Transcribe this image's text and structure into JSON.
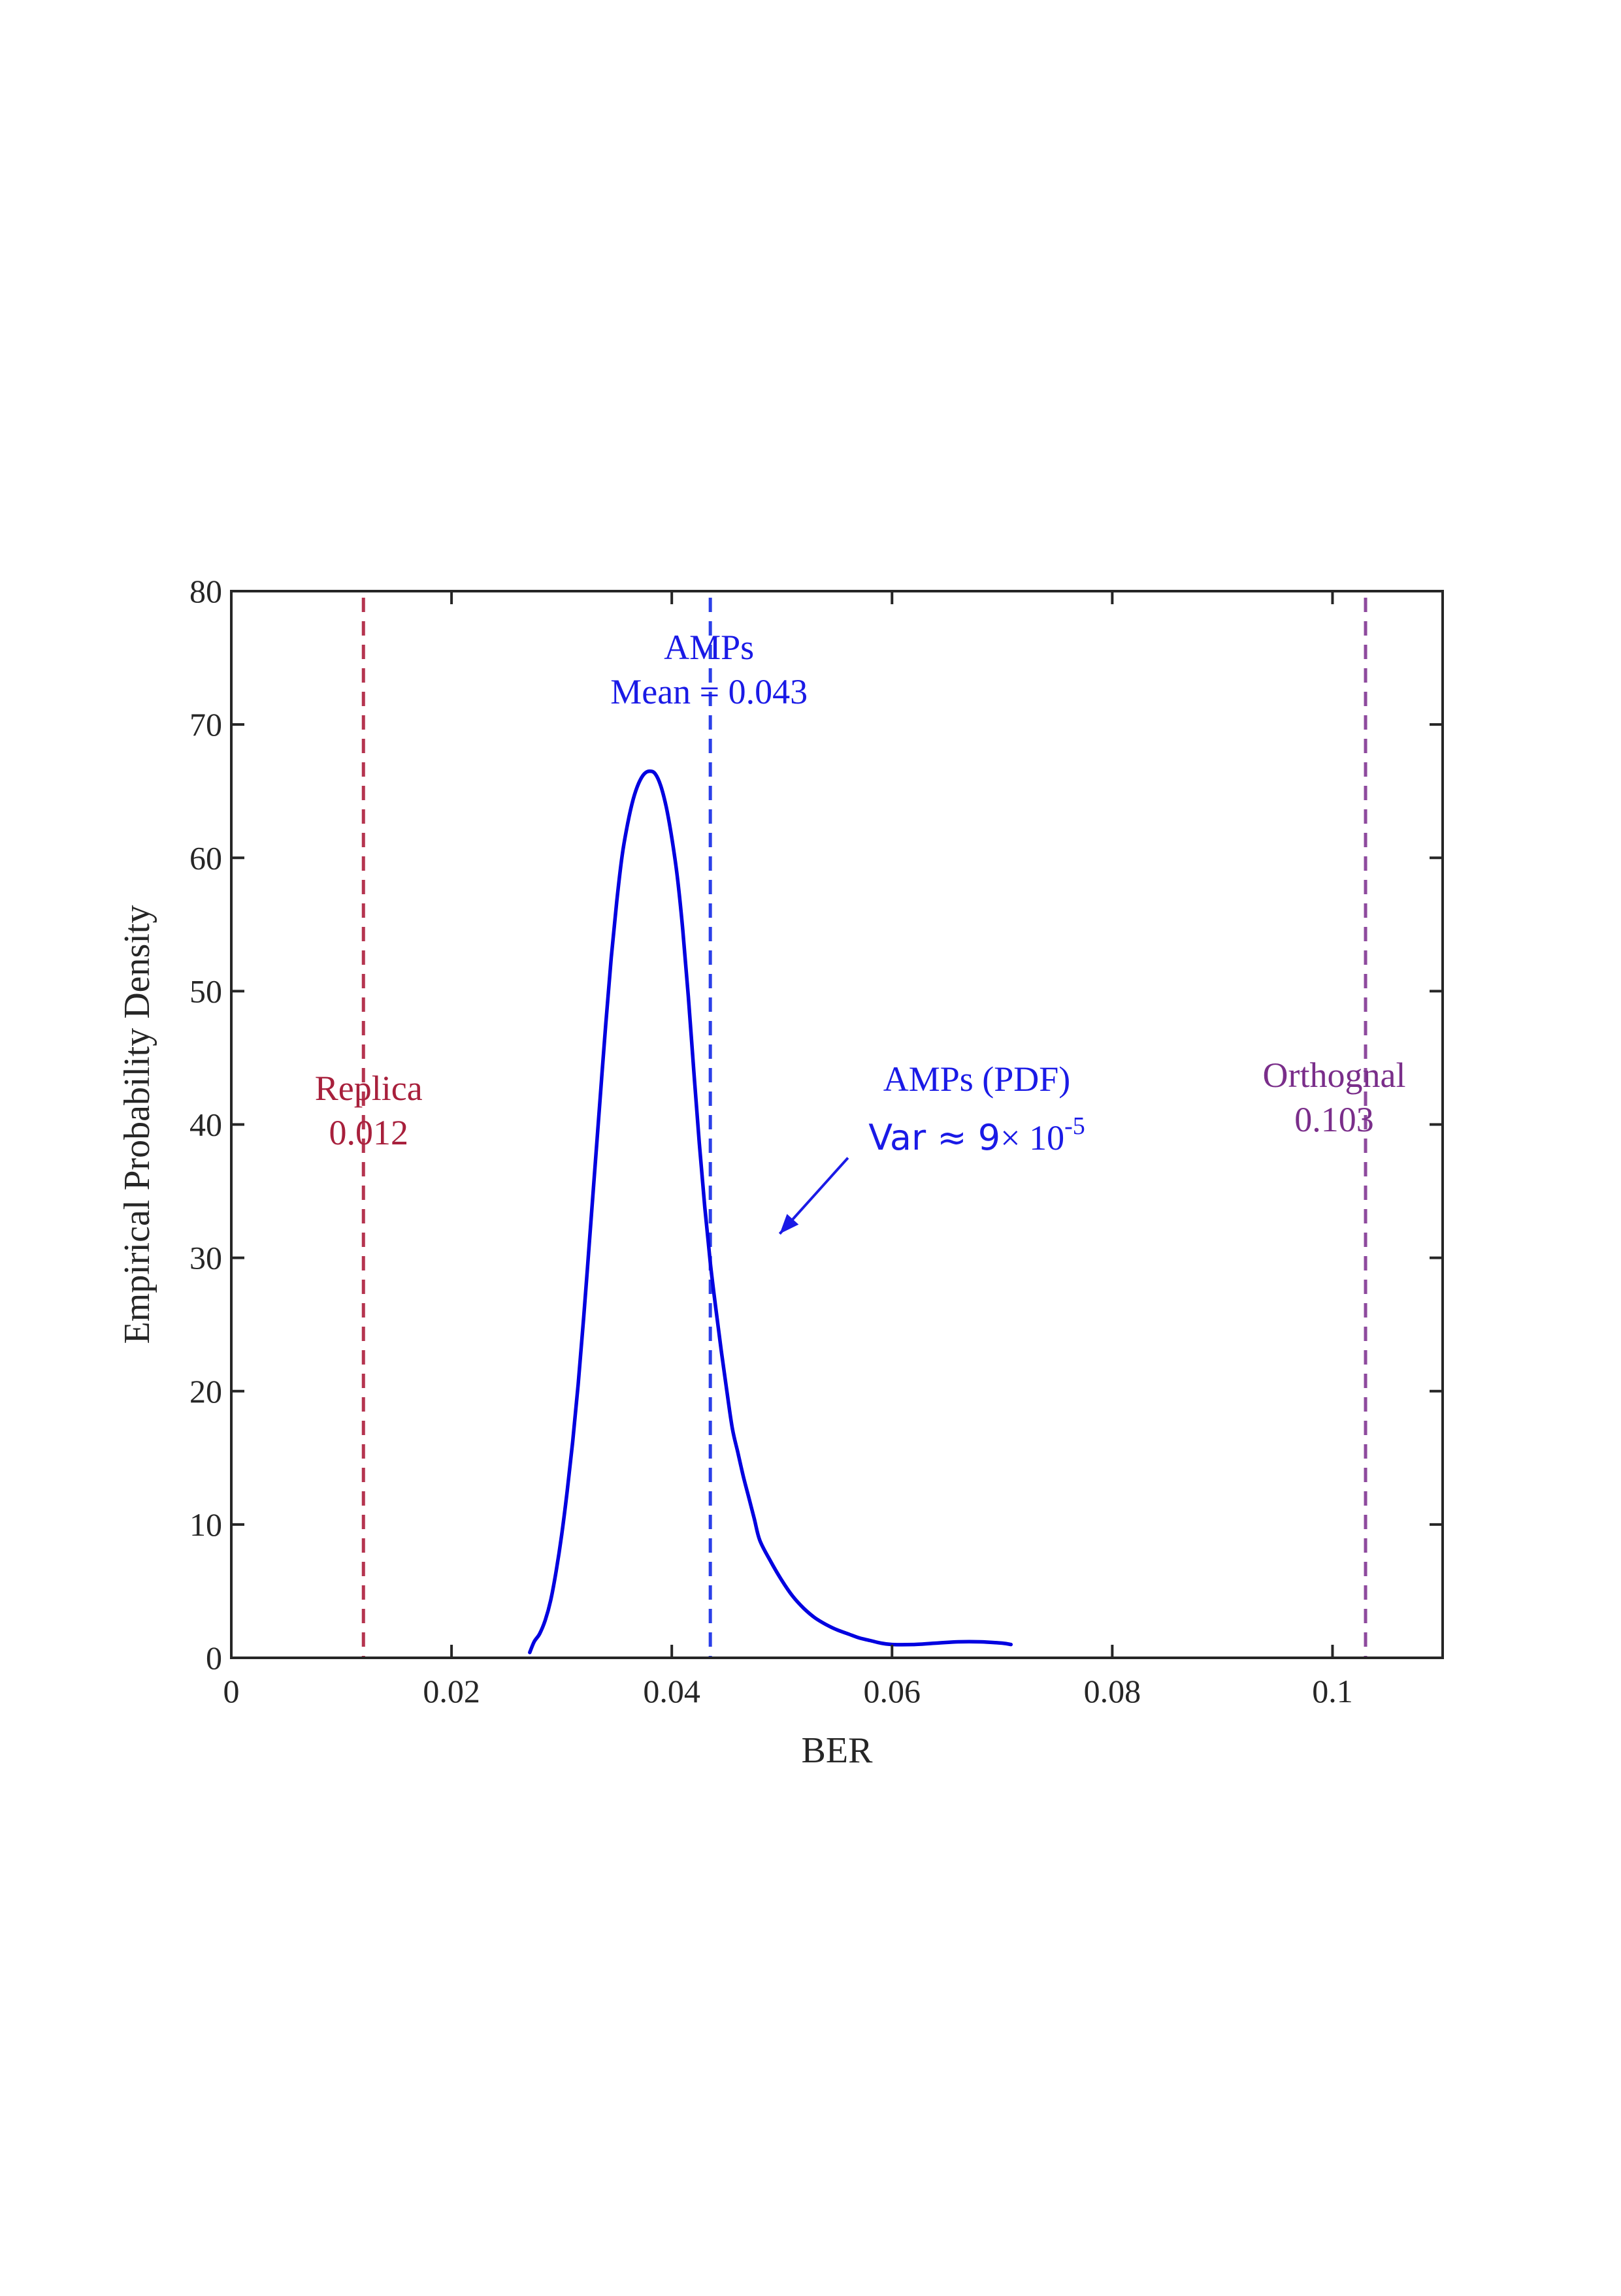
{
  "chart_data": {
    "type": "line",
    "xlabel": "BER",
    "ylabel": "Empirical Probability Density",
    "xlim": [
      0,
      0.11
    ],
    "ylim": [
      0,
      80
    ],
    "xticks": [
      0,
      0.02,
      0.04,
      0.06,
      0.08,
      0.1
    ],
    "xtick_labels": [
      "0",
      "0.02",
      "0.04",
      "0.06",
      "0.08",
      "0.1"
    ],
    "yticks": [
      0,
      10,
      20,
      30,
      40,
      50,
      60,
      70,
      80
    ],
    "ytick_labels": [
      "0",
      "10",
      "20",
      "30",
      "40",
      "50",
      "60",
      "70",
      "80"
    ],
    "series": [
      {
        "name": "AMPs (PDF)",
        "color": "#0000e0",
        "x": [
          0.0271,
          0.0275,
          0.028,
          0.0285,
          0.029,
          0.0295,
          0.03,
          0.0305,
          0.031,
          0.0315,
          0.032,
          0.0325,
          0.033,
          0.0335,
          0.034,
          0.0345,
          0.035,
          0.0355,
          0.036,
          0.0365,
          0.037,
          0.0375,
          0.038,
          0.0385,
          0.039,
          0.0395,
          0.04,
          0.0405,
          0.041,
          0.0415,
          0.042,
          0.0425,
          0.043,
          0.0435,
          0.044,
          0.0445,
          0.045,
          0.0455,
          0.046,
          0.0465,
          0.047,
          0.0475,
          0.048,
          0.049,
          0.05,
          0.051,
          0.052,
          0.053,
          0.054,
          0.055,
          0.056,
          0.057,
          0.058,
          0.059,
          0.06,
          0.062,
          0.064,
          0.066,
          0.068,
          0.07,
          0.0708
        ],
        "y": [
          0.4,
          1.2,
          1.8,
          2.8,
          4.3,
          6.5,
          9.2,
          12.5,
          16.2,
          20.5,
          25.5,
          31.0,
          36.5,
          42.0,
          47.5,
          52.5,
          56.7,
          60.2,
          62.6,
          64.4,
          65.6,
          66.3,
          66.5,
          66.3,
          65.4,
          63.8,
          61.5,
          58.6,
          54.6,
          49.6,
          44.0,
          38.6,
          33.8,
          29.6,
          26.2,
          23.0,
          20.0,
          17.2,
          15.4,
          13.6,
          12.0,
          10.4,
          8.8,
          7.2,
          5.8,
          4.6,
          3.7,
          3.0,
          2.5,
          2.1,
          1.8,
          1.5,
          1.3,
          1.1,
          1.0,
          1.0,
          1.1,
          1.2,
          1.2,
          1.1,
          1.0
        ]
      }
    ],
    "reference_lines": [
      {
        "name": "Replica",
        "x": 0.012,
        "color": "#b5344f",
        "label_line1": "Replica",
        "label_line2": "0.012"
      },
      {
        "name": "AMPs Mean",
        "x": 0.0435,
        "color": "#2b3fe8",
        "label_line1": "AMPs",
        "label_line2": "Mean = 0.043"
      },
      {
        "name": "Orthognal",
        "x": 0.103,
        "color": "#8e4a9e",
        "label_line1": "Orthognal",
        "label_line2": "0.103"
      }
    ],
    "annotations": {
      "pdf_label": "AMPs (PDF)",
      "var_prefix": "Var ≈ 9",
      "var_times": "×",
      "var_base": " 10",
      "var_exponent": "-5",
      "arrow_from": [
        0.056,
        37.5
      ],
      "arrow_to": [
        0.0498,
        31.8
      ]
    },
    "colors": {
      "axis": "#262626",
      "replica_text": "#a8203c",
      "amps_text": "#1a1ae6",
      "orthognal_text": "#7a2e8a"
    }
  }
}
